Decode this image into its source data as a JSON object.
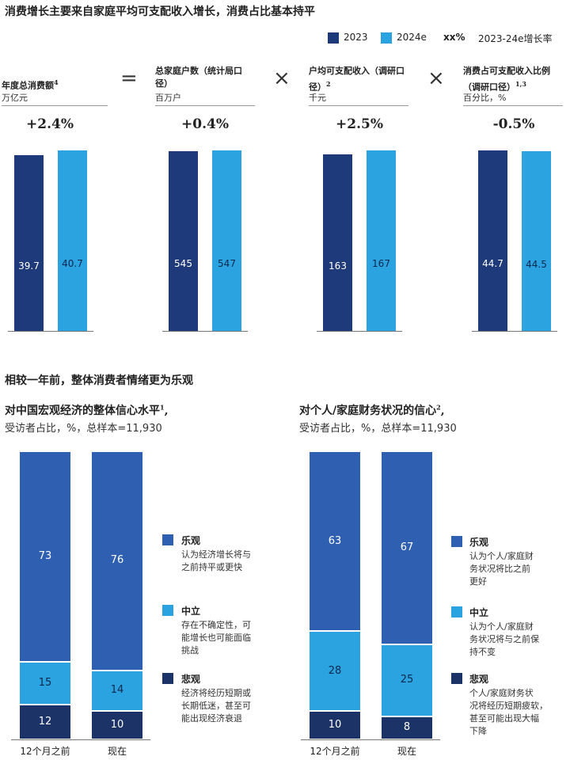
{
  "page_title": "消费增长主要来自家庭平均可支配收入增长，消费占比基本持平",
  "legend_top": {
    "series": [
      {
        "name": "2023",
        "color": "#1f3a7a"
      },
      {
        "name": "2024e",
        "color": "#2aa3e0"
      }
    ],
    "growth_marker": "xx%",
    "growth_label": "2023-24e增长率"
  },
  "operators": [
    "=",
    "×",
    "×"
  ],
  "chart_data": [
    {
      "type": "bar",
      "title": "年度总消费额",
      "title_sup": "4",
      "unit": "万亿元",
      "growth": "+2.4%",
      "categories": [
        "2023",
        "2024e"
      ],
      "values": [
        39.7,
        40.7
      ],
      "labels": [
        "39.7",
        "40.7"
      ]
    },
    {
      "type": "bar",
      "title": "总家庭户数（统计局口径）",
      "title_sup": "",
      "unit": "百万户",
      "growth": "+0.4%",
      "categories": [
        "2023",
        "2024e"
      ],
      "values": [
        545,
        547
      ],
      "labels": [
        "545",
        "547"
      ]
    },
    {
      "type": "bar",
      "title": "户均可支配收入（调研口径）",
      "title_sup": "2",
      "unit": "千元",
      "growth": "+2.5%",
      "categories": [
        "2023",
        "2024e"
      ],
      "values": [
        163,
        167
      ],
      "labels": [
        "163",
        "167"
      ]
    },
    {
      "type": "bar",
      "title": "消费占可支配收入比例（调研口径）",
      "title_sup": "1,3",
      "unit": "百分比，%",
      "growth": "-0.5%",
      "categories": [
        "2023",
        "2024e"
      ],
      "values": [
        44.7,
        44.5
      ],
      "labels": [
        "44.7",
        "44.5"
      ]
    },
    {
      "type": "stacked-bar",
      "title": "对中国宏观经济的整体信心水平",
      "title_sup": "1",
      "unit": "受访者占比，%，总样本=11,930",
      "categories": [
        "12个月之前",
        "现在"
      ],
      "series": [
        {
          "name": "乐观",
          "color": "#2f5fb0",
          "values": [
            73,
            76
          ]
        },
        {
          "name": "中立",
          "color": "#2aa3e0",
          "values": [
            15,
            14
          ]
        },
        {
          "name": "悲观",
          "color": "#1c3368",
          "values": [
            12,
            10
          ]
        }
      ]
    },
    {
      "type": "stacked-bar",
      "title": "对个人/家庭财务状况的信心",
      "title_sup": "2",
      "unit": "受访者占比，%，总样本=11,930",
      "categories": [
        "12个月之前",
        "现在"
      ],
      "series": [
        {
          "name": "乐观",
          "color": "#2f5fb0",
          "values": [
            63,
            67
          ]
        },
        {
          "name": "中立",
          "color": "#2aa3e0",
          "values": [
            28,
            25
          ]
        },
        {
          "name": "悲观",
          "color": "#1c3368",
          "values": [
            10,
            8
          ]
        }
      ]
    }
  ],
  "section2_title": "相较一年前，整体消费者情绪更为乐观",
  "legend_left": [
    {
      "name": "乐观",
      "color": "#2f5fb0",
      "lines": [
        "认为经济增长将与",
        "之前持平或更快"
      ]
    },
    {
      "name": "中立",
      "color": "#2aa3e0",
      "lines": [
        "存在不确定性，可",
        "能增长也可能面临",
        "挑战"
      ]
    },
    {
      "name": "悲观",
      "color": "#1c3368",
      "lines": [
        "经济将经历短期或",
        "长期低迷，甚至可",
        "能出现经济衰退"
      ]
    }
  ],
  "legend_right": [
    {
      "name": "乐观",
      "color": "#2f5fb0",
      "lines": [
        "认为个人/家庭财",
        "务状况将比之前",
        "更好"
      ]
    },
    {
      "name": "中立",
      "color": "#2aa3e0",
      "lines": [
        "认为个人/家庭财",
        "务状况将与之前保",
        "持不变"
      ]
    },
    {
      "name": "悲观",
      "color": "#1c3368",
      "lines": [
        "个人/家庭财务状",
        "况将经历短期疲软，",
        "甚至可能出现大幅",
        "下降"
      ]
    }
  ]
}
